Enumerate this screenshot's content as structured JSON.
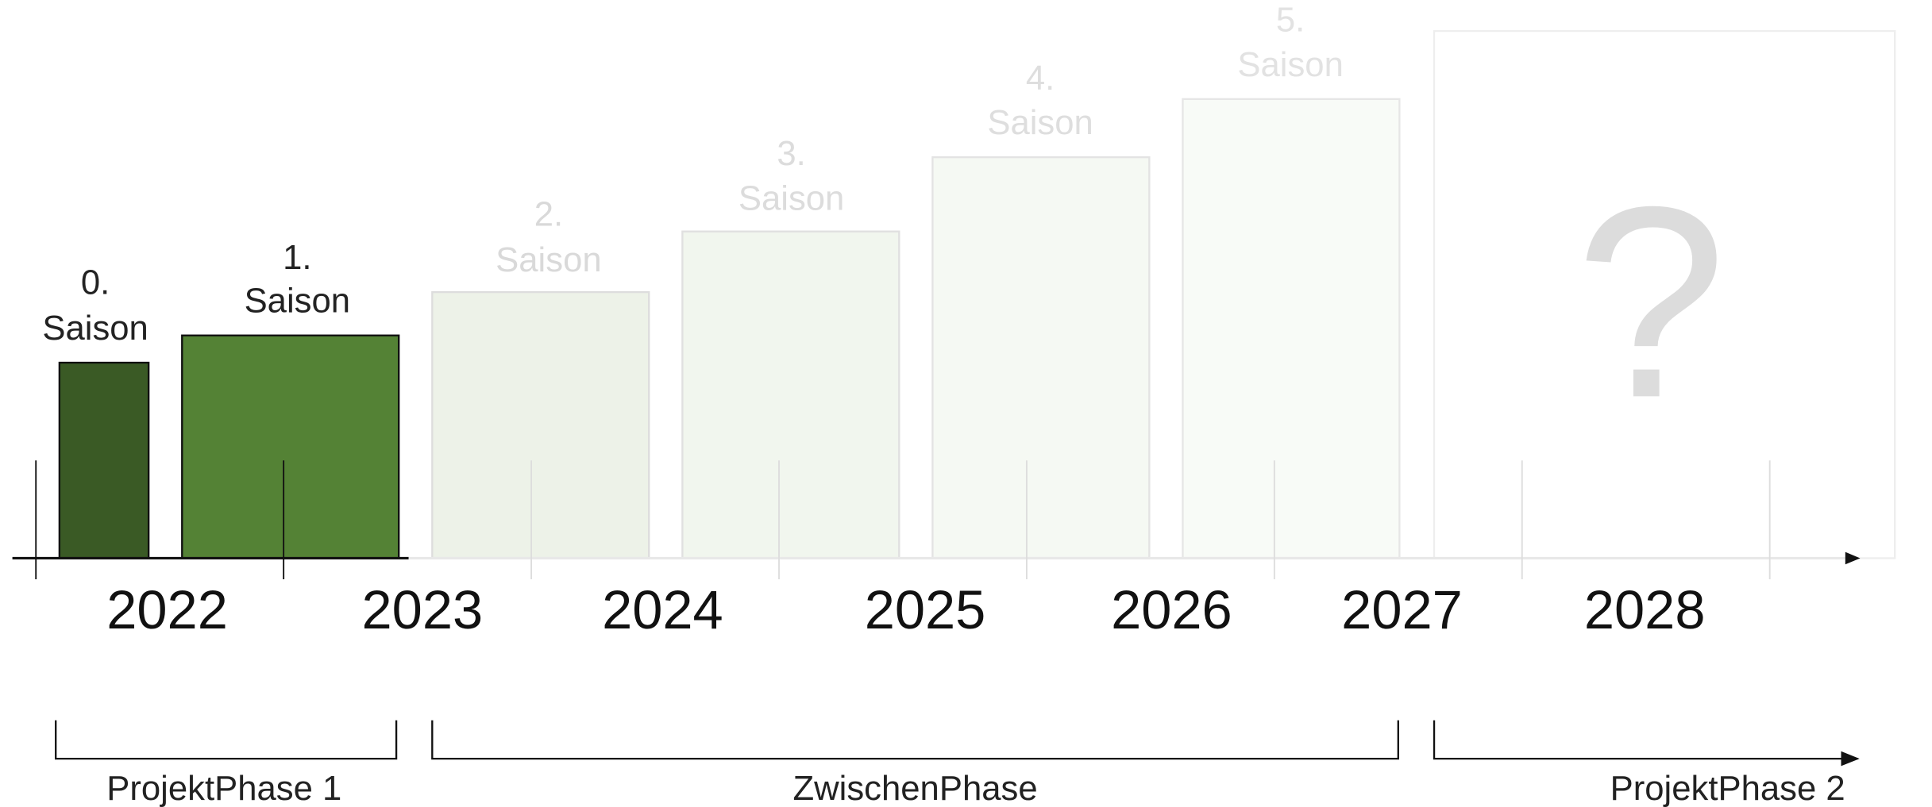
{
  "seasons": [
    {
      "number": "0.",
      "label": "Saison"
    },
    {
      "number": "1.",
      "label": "Saison"
    },
    {
      "number": "2.",
      "label": "Saison"
    },
    {
      "number": "3.",
      "label": "Saison"
    },
    {
      "number": "4.",
      "label": "Saison"
    },
    {
      "number": "5.",
      "label": "Saison"
    }
  ],
  "question": "?",
  "years": [
    "2022",
    "2023",
    "2024",
    "2025",
    "2026",
    "2027",
    "2028"
  ],
  "phases": [
    "ProjektPhase 1",
    "ZwischenPhase",
    "ProjektPhase 2"
  ]
}
